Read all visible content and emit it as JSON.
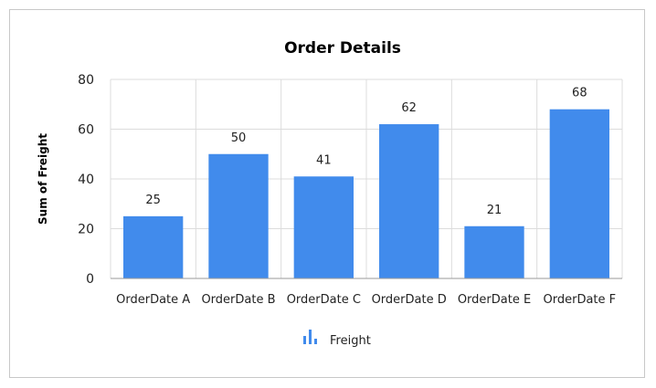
{
  "chart_data": {
    "type": "bar",
    "title": "Order Details",
    "xlabel": "",
    "ylabel": "Sum of Freight",
    "categories": [
      "OrderDate A",
      "OrderDate B",
      "OrderDate C",
      "OrderDate D",
      "OrderDate E",
      "OrderDate F"
    ],
    "series": [
      {
        "name": "Freight",
        "values": [
          25,
          50,
          41,
          62,
          21,
          68
        ],
        "color": "#418bec"
      }
    ],
    "ylim": [
      0,
      80
    ],
    "yticks": [
      0,
      20,
      40,
      60,
      80
    ],
    "grid": true,
    "legend_position": "bottom",
    "legend_icon": "bar-chart-icon",
    "data_labels": true
  }
}
